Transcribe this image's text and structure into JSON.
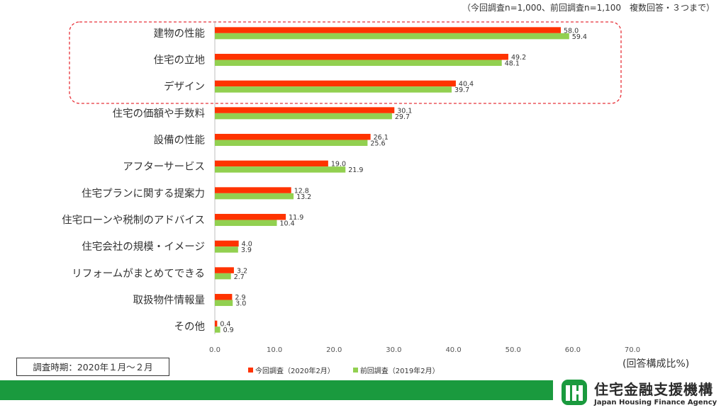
{
  "note": "（今回調査n=1,000、前回調査n=1,100　複数回答・３つまで）",
  "period": "調査時期：2020年１月～２月",
  "unit": "(回答構成比%)",
  "legend": [
    {
      "label": "今回調査（2020年2月）",
      "color": "#ff3300"
    },
    {
      "label": "前回調査（2019年2月）",
      "color": "#92d050"
    }
  ],
  "logo": {
    "jp": "住宅金融支援機構",
    "en": "Japan Housing Finance Agency",
    "mark": "JHF"
  },
  "chart_data": {
    "type": "bar",
    "orientation": "horizontal",
    "categories": [
      "建物の性能",
      "住宅の立地",
      "デザイン",
      "住宅の価額や手数料",
      "設備の性能",
      "アフターサービス",
      "住宅プランに関する提案力",
      "住宅ローンや税制のアドバイス",
      "住宅会社の規模・イメージ",
      "リフォームがまとめてできる",
      "取扱物件情報量",
      "その他"
    ],
    "series": [
      {
        "name": "今回調査（2020年2月）",
        "color": "#ff3300",
        "values": [
          58.0,
          49.2,
          40.4,
          30.1,
          26.1,
          19.0,
          12.8,
          11.9,
          4.0,
          3.2,
          2.9,
          0.4
        ]
      },
      {
        "name": "前回調査（2019年2月）",
        "color": "#92d050",
        "values": [
          59.4,
          48.1,
          39.7,
          29.7,
          25.6,
          21.9,
          13.2,
          10.4,
          3.9,
          2.7,
          3.0,
          0.9
        ]
      }
    ],
    "xlim": [
      0,
      70
    ],
    "ticks": [
      "0.0",
      "10.0",
      "20.0",
      "30.0",
      "40.0",
      "50.0",
      "60.0",
      "70.0"
    ],
    "grid": false,
    "highlight_categories": [
      "建物の性能",
      "住宅の立地",
      "デザイン"
    ]
  }
}
